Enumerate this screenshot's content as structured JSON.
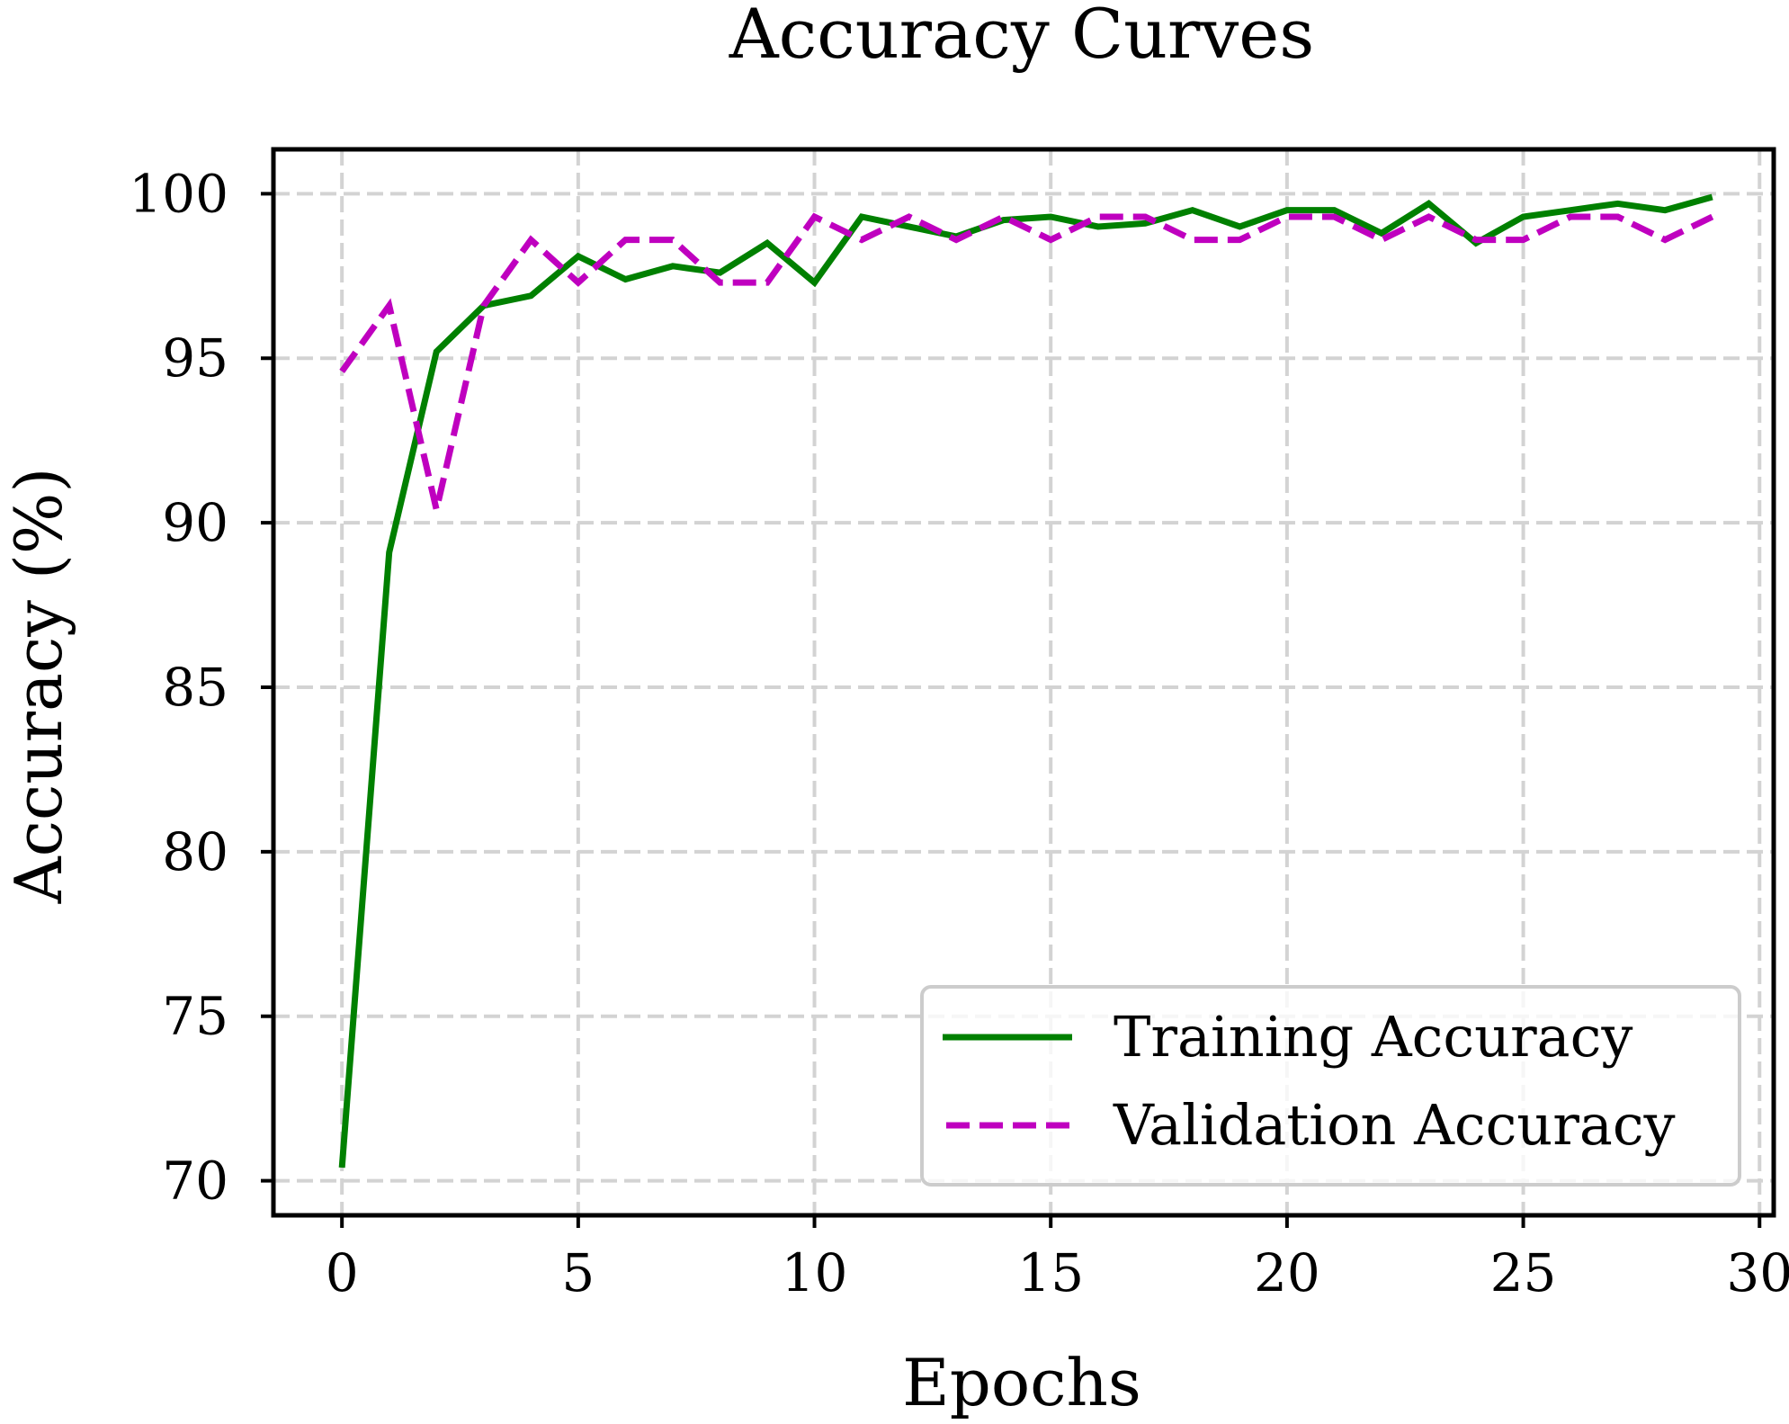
{
  "chart_data": {
    "type": "line",
    "title": "Accuracy Curves",
    "xlabel": "Epochs",
    "ylabel": "Accuracy (%)",
    "xlim": [
      -1.45,
      30.3
    ],
    "ylim": [
      68.95,
      101.35
    ],
    "xticks": [
      0,
      5,
      10,
      15,
      20,
      25,
      30
    ],
    "yticks": [
      70,
      75,
      80,
      85,
      90,
      95,
      100
    ],
    "grid": true,
    "legend_position": "lower-right",
    "x": [
      0,
      1,
      2,
      3,
      4,
      5,
      6,
      7,
      8,
      9,
      10,
      11,
      12,
      13,
      14,
      15,
      16,
      17,
      18,
      19,
      20,
      21,
      22,
      23,
      24,
      25,
      26,
      27,
      28,
      29
    ],
    "series": [
      {
        "name": "Training Accuracy",
        "color": "#008000",
        "style": "solid",
        "values": [
          70.4,
          89.1,
          95.2,
          96.6,
          96.9,
          98.1,
          97.4,
          97.8,
          97.6,
          98.5,
          97.3,
          99.3,
          99.0,
          98.7,
          99.2,
          99.3,
          99.0,
          99.1,
          99.5,
          99.0,
          99.5,
          99.5,
          98.8,
          99.7,
          98.5,
          99.3,
          99.5,
          99.7,
          99.5,
          99.9
        ]
      },
      {
        "name": "Validation Accuracy",
        "color": "#bf00bf",
        "style": "dashed",
        "values": [
          94.6,
          96.6,
          90.4,
          96.6,
          98.6,
          97.3,
          98.6,
          98.6,
          97.3,
          97.3,
          99.3,
          98.6,
          99.3,
          98.6,
          99.3,
          98.6,
          99.3,
          99.3,
          98.6,
          98.6,
          99.3,
          99.3,
          98.6,
          99.3,
          98.6,
          98.6,
          99.3,
          99.3,
          98.6,
          99.3
        ]
      }
    ]
  }
}
